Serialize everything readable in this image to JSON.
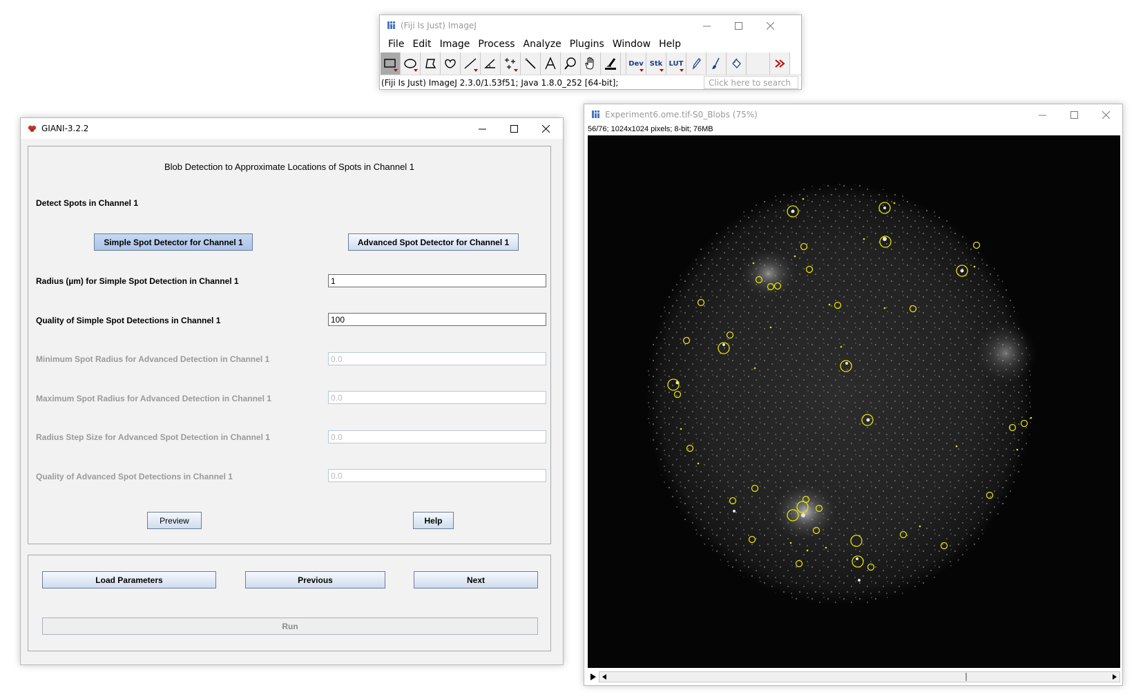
{
  "imagej": {
    "title": "(Fiji Is Just) ImageJ",
    "menus": [
      "File",
      "Edit",
      "Image",
      "Process",
      "Analyze",
      "Plugins",
      "Window",
      "Help"
    ],
    "tools": [
      "rectangle-tool",
      "oval-tool",
      "polygon-tool",
      "freehand-tool",
      "line-tool",
      "angle-tool",
      "point-tool",
      "wand-tool",
      "text-tool",
      "magnifier-tool",
      "hand-tool",
      "color-picker-tool"
    ],
    "text_tools": {
      "dev": "Dev",
      "stk": "Stk",
      "lut": "LUT"
    },
    "status": "(Fiji Is Just) ImageJ 2.3.0/1.53f51; Java 1.8.0_252 [64-bit];",
    "search_placeholder": "Click here to search"
  },
  "giani": {
    "title": "GIANI-3.2.2",
    "panel_title": "Blob Detection to Approximate Locations of Spots in Channel 1",
    "section_label": "Detect Spots in Channel 1",
    "simple_button": "Simple Spot Detector for Channel 1",
    "advanced_button": "Advanced Spot Detector for Channel 1",
    "params": [
      {
        "label": "Radius (µm) for Simple Spot Detection in Channel 1",
        "value": "1",
        "enabled": true
      },
      {
        "label": "Quality of Simple Spot Detections in Channel 1",
        "value": "100",
        "enabled": true
      },
      {
        "label": "Minimum Spot Radius for Advanced Detection in Channel 1",
        "value": "0.0",
        "enabled": false
      },
      {
        "label": "Maximum Spot Radius for Advanced Detection in Channel 1",
        "value": "0.0",
        "enabled": false
      },
      {
        "label": "Radius Step Size for Advanced Spot Detection in Channel 1",
        "value": "0.0",
        "enabled": false
      },
      {
        "label": "Quality of Advanced Spot Detections in Channel 1",
        "value": "0.0",
        "enabled": false
      }
    ],
    "preview_button": "Preview",
    "help_button": "Help",
    "load_button": "Load Parameters",
    "previous_button": "Previous",
    "next_button": "Next",
    "run_button": "Run"
  },
  "image_window": {
    "title": "Experiment6.ome.tif-S0_Blobs (75%)",
    "info": "56/76; 1024x1024 pixels; 8-bit; 76MB"
  }
}
